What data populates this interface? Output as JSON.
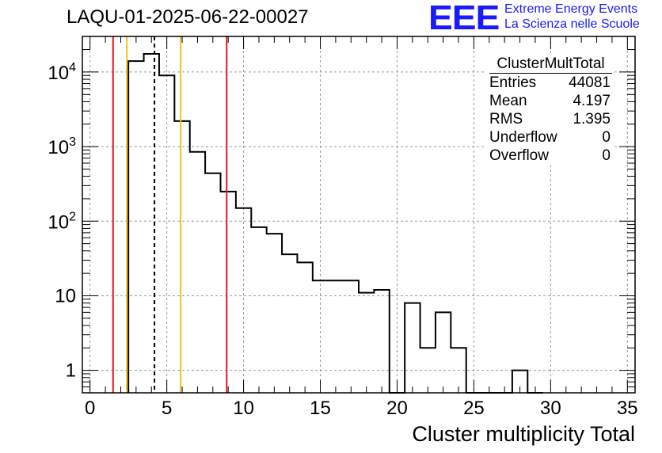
{
  "header": {
    "title": "LAQU-01-2025-06-22-00027",
    "logo_text": "EEE",
    "logo_line1": "Extreme Energy Events",
    "logo_line2": "La Scienza nelle Scuole"
  },
  "stats_box": {
    "title": "ClusterMultTotal",
    "rows": [
      {
        "label": "Entries",
        "value": "44081"
      },
      {
        "label": "Mean",
        "value": "4.197"
      },
      {
        "label": "RMS",
        "value": "1.395"
      },
      {
        "label": "Underflow",
        "value": "0"
      },
      {
        "label": "Overflow",
        "value": "0"
      }
    ]
  },
  "chart_data": {
    "type": "histogram",
    "title": "LAQU-01-2025-06-22-00027",
    "xlabel": "Cluster multiplicity Total",
    "ylabel": "",
    "xlim": [
      -0.5,
      35.5
    ],
    "ylim": [
      0.5,
      30000
    ],
    "yscale": "log",
    "grid": true,
    "bin_width": 1,
    "x_ticks": [
      "0",
      "5",
      "10",
      "15",
      "20",
      "25",
      "30",
      "35"
    ],
    "y_ticks": [
      {
        "value": 1,
        "label": "1"
      },
      {
        "value": 10,
        "label": "10"
      },
      {
        "value": 100,
        "base": "10",
        "exp": "2"
      },
      {
        "value": 1000,
        "base": "10",
        "exp": "3"
      },
      {
        "value": 10000,
        "base": "10",
        "exp": "4"
      }
    ],
    "bins": [
      {
        "x": 3,
        "count": 14000
      },
      {
        "x": 4,
        "count": 17500
      },
      {
        "x": 5,
        "count": 9000
      },
      {
        "x": 6,
        "count": 2200
      },
      {
        "x": 7,
        "count": 850
      },
      {
        "x": 8,
        "count": 440
      },
      {
        "x": 9,
        "count": 250
      },
      {
        "x": 10,
        "count": 150
      },
      {
        "x": 11,
        "count": 83
      },
      {
        "x": 12,
        "count": 68
      },
      {
        "x": 13,
        "count": 36
      },
      {
        "x": 14,
        "count": 28
      },
      {
        "x": 15,
        "count": 16
      },
      {
        "x": 16,
        "count": 16
      },
      {
        "x": 17,
        "count": 16
      },
      {
        "x": 18,
        "count": 11
      },
      {
        "x": 19,
        "count": 12
      },
      {
        "x": 20,
        "count": 0
      },
      {
        "x": 21,
        "count": 8
      },
      {
        "x": 22,
        "count": 2
      },
      {
        "x": 23,
        "count": 6
      },
      {
        "x": 24,
        "count": 2
      },
      {
        "x": 25,
        "count": 0
      },
      {
        "x": 26,
        "count": 0
      },
      {
        "x": 27,
        "count": 0
      },
      {
        "x": 28,
        "count": 1
      },
      {
        "x": 29,
        "count": 0
      }
    ],
    "vertical_lines": [
      {
        "x": 1.5,
        "color": "#e8161d",
        "style": "solid"
      },
      {
        "x": 2.4,
        "color": "#f2c21a",
        "style": "solid"
      },
      {
        "x": 4.197,
        "color": "#000000",
        "style": "dashed"
      },
      {
        "x": 5.9,
        "color": "#f2c21a",
        "style": "solid"
      },
      {
        "x": 8.9,
        "color": "#e8161d",
        "style": "solid"
      }
    ]
  }
}
